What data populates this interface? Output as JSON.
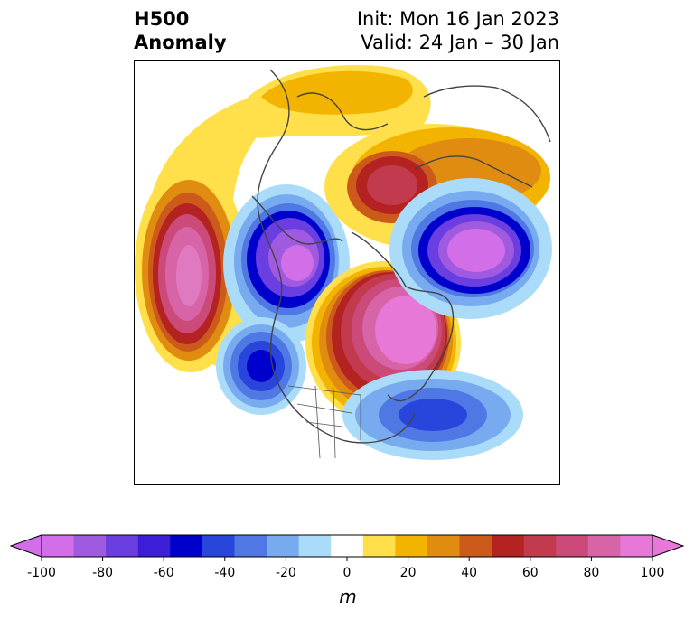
{
  "header": {
    "title_line1": "H500",
    "title_line2": "Anomaly",
    "init_text": "Init: Mon 16 Jan 2023",
    "valid_text": "Valid: 24 Jan – 30 Jan"
  },
  "colorbar": {
    "unit": "m",
    "tick_labels": [
      "-100",
      "-80",
      "-60",
      "-40",
      "-20",
      "0",
      "20",
      "40",
      "60",
      "80",
      "100"
    ],
    "levels": [
      -100,
      -90,
      -80,
      -70,
      -60,
      -50,
      -40,
      -30,
      -20,
      -10,
      10,
      20,
      30,
      40,
      50,
      60,
      70,
      80,
      90,
      100
    ],
    "colors": [
      "#d26ee8",
      "#a05ae0",
      "#6a3ee0",
      "#3c1ed8",
      "#0000cc",
      "#2846dc",
      "#5078e4",
      "#78aaf0",
      "#aadcfa",
      "#ffffff",
      "#ffe04a",
      "#f2b400",
      "#e08c10",
      "#cc5a1a",
      "#b42222",
      "#c23a4e",
      "#cc4a7a",
      "#d864a8",
      "#e878d8"
    ],
    "under_color": "#d26ee8",
    "over_color": "#e878d8"
  }
}
